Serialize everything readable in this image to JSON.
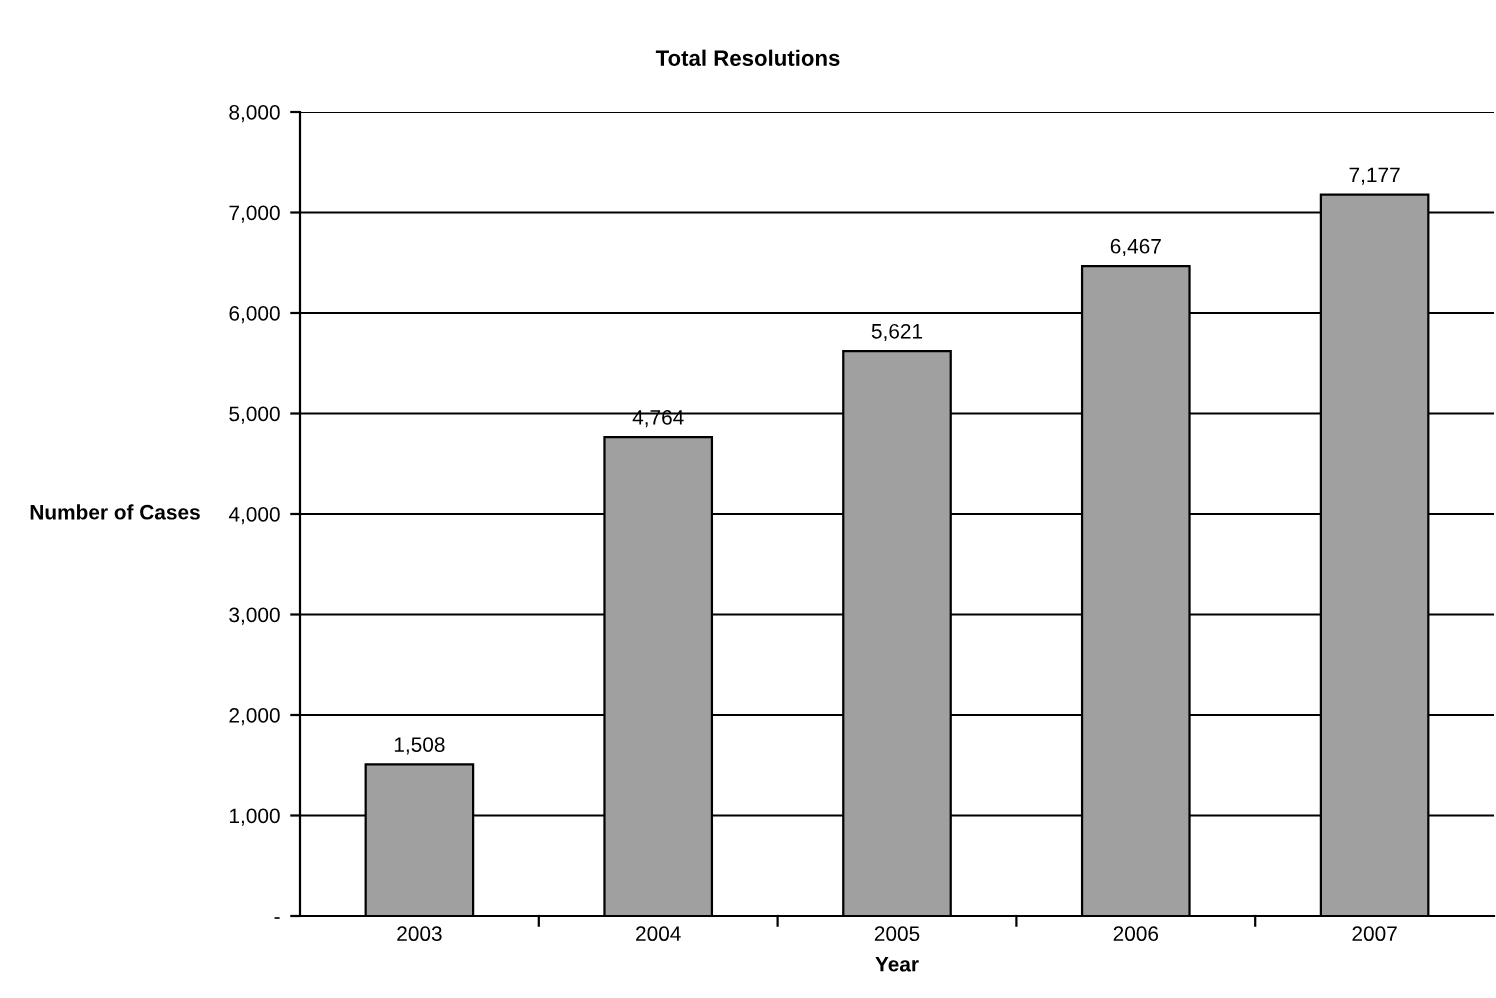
{
  "chart_data": {
    "type": "bar",
    "title": "Total Resolutions",
    "xlabel": "Year",
    "ylabel": "Number of Cases",
    "categories": [
      "2003",
      "2004",
      "2005",
      "2006",
      "2007"
    ],
    "values": [
      1508,
      4764,
      5621,
      6467,
      7177
    ],
    "value_labels": [
      "1,508",
      "4,764",
      "5,621",
      "6,467",
      "7,177"
    ],
    "color": "#a0a0a0",
    "ylim": [
      0,
      8000
    ],
    "yticks": [
      {
        "value": 0,
        "label": "-"
      },
      {
        "value": 1000,
        "label": "1,000"
      },
      {
        "value": 2000,
        "label": "2,000"
      },
      {
        "value": 3000,
        "label": "3,000"
      },
      {
        "value": 4000,
        "label": "4,000"
      },
      {
        "value": 5000,
        "label": "5,000"
      },
      {
        "value": 6000,
        "label": "6,000"
      },
      {
        "value": 7000,
        "label": "7,000"
      },
      {
        "value": 8000,
        "label": "8,000"
      }
    ],
    "grid": "y",
    "legend": false
  }
}
